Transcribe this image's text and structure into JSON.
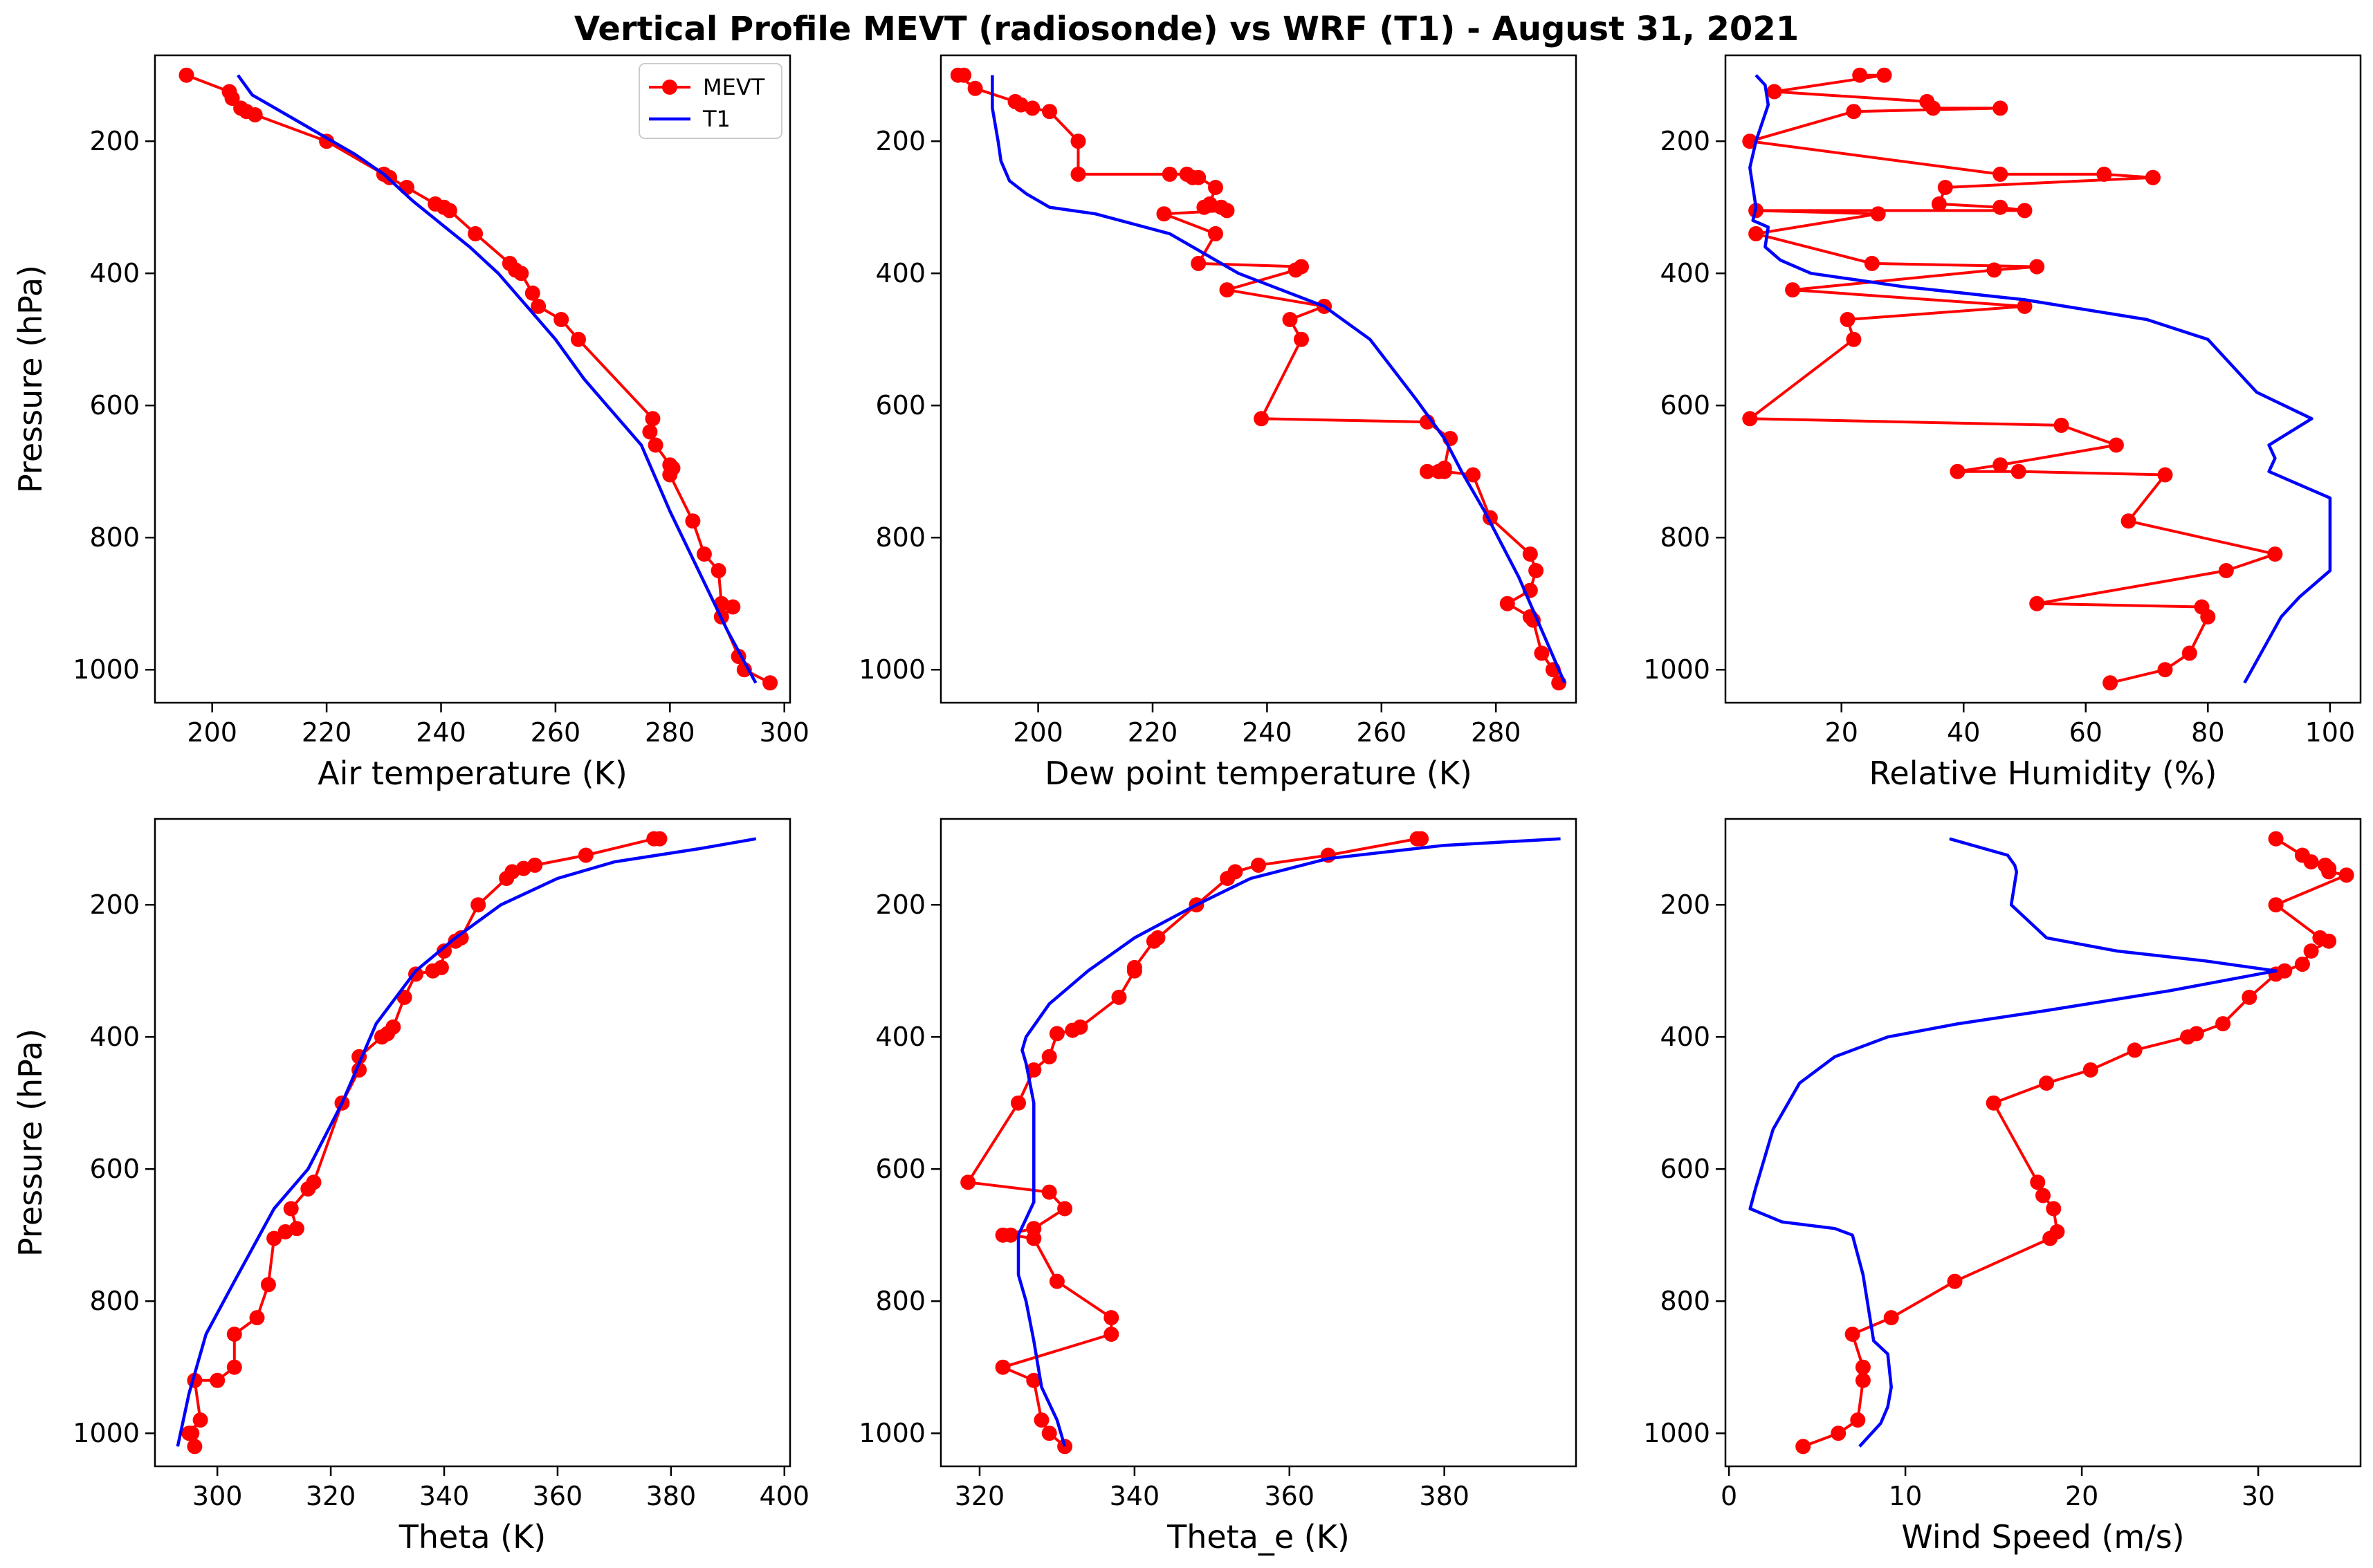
{
  "figure_title": "Vertical Profile MEVT (radiosonde) vs WRF (T1) - August 31, 2021",
  "legend": {
    "obs_label": "MEVT",
    "model_label": "T1"
  },
  "colors": {
    "obs": "#ff0000",
    "model": "#0000ff",
    "axes": "#000000",
    "background": "#ffffff"
  },
  "chart_data": [
    {
      "type": "line",
      "panel": "top-left",
      "xlabel": "Air temperature (K)",
      "ylabel": "Pressure (hPa)",
      "xlim": [
        190,
        301
      ],
      "ylim": [
        1050,
        70
      ],
      "xticks": [
        200,
        220,
        240,
        260,
        280,
        300
      ],
      "yticks": [
        200,
        400,
        600,
        800,
        1000
      ],
      "legend_position": "top-right",
      "series": [
        {
          "name": "MEVT",
          "marker": "circle",
          "x": [
            195.5,
            203,
            203.5,
            205,
            206,
            207.5,
            220,
            230,
            231,
            234,
            239,
            240.5,
            241.5,
            246,
            252,
            253,
            254,
            256,
            257,
            261,
            264,
            277,
            276.5,
            277.5,
            280,
            280.5,
            280,
            284,
            286,
            288.5,
            289,
            291,
            289,
            292,
            293,
            297.5
          ],
          "y": [
            100,
            125,
            135,
            150,
            155,
            160,
            200,
            250,
            255,
            270,
            295,
            300,
            305,
            340,
            385,
            395,
            400,
            430,
            450,
            470,
            500,
            620,
            640,
            660,
            690,
            695,
            705,
            775,
            825,
            850,
            900,
            905,
            920,
            980,
            1000,
            1020
          ]
        },
        {
          "name": "T1",
          "marker": "none",
          "x": [
            204.5,
            207,
            210,
            215,
            220,
            225,
            230,
            235,
            240,
            245,
            250,
            255,
            260,
            265,
            270,
            275,
            280,
            285,
            290,
            295
          ],
          "y": [
            100,
            130,
            145,
            170,
            195,
            220,
            250,
            290,
            325,
            360,
            400,
            450,
            500,
            560,
            610,
            660,
            760,
            850,
            940,
            1020
          ]
        }
      ]
    },
    {
      "type": "line",
      "panel": "top-middle",
      "xlabel": "Dew point temperature (K)",
      "ylabel": "",
      "xlim": [
        183,
        294
      ],
      "ylim": [
        1050,
        70
      ],
      "xticks": [
        200,
        220,
        240,
        260,
        280
      ],
      "yticks": [
        200,
        400,
        600,
        800,
        1000
      ],
      "series": [
        {
          "name": "MEVT",
          "marker": "circle",
          "x": [
            187,
            186,
            189,
            196,
            197,
            199,
            202,
            207,
            207,
            223,
            226,
            227,
            228,
            231,
            230,
            232,
            229,
            233,
            222,
            231,
            228,
            246,
            245,
            233,
            250,
            244,
            246,
            239,
            268,
            272,
            271,
            270,
            268,
            271,
            276,
            279,
            286,
            287,
            286,
            282,
            286,
            286.5,
            288,
            290,
            291
          ],
          "y": [
            100,
            100,
            120,
            140,
            145,
            150,
            155,
            200,
            250,
            250,
            250,
            255,
            255,
            270,
            295,
            300,
            300,
            305,
            310,
            340,
            385,
            390,
            395,
            425,
            450,
            470,
            500,
            620,
            625,
            650,
            695,
            700,
            700,
            700,
            705,
            770,
            825,
            850,
            880,
            900,
            920,
            925,
            975,
            1000,
            1020
          ]
        },
        {
          "name": "T1",
          "marker": "none",
          "x": [
            192,
            192,
            193,
            193.5,
            195,
            198,
            202,
            210,
            223,
            229,
            235,
            241,
            250,
            258,
            266,
            271,
            274,
            278,
            284,
            292
          ],
          "y": [
            100,
            150,
            200,
            230,
            260,
            280,
            300,
            310,
            340,
            370,
            400,
            420,
            450,
            500,
            590,
            650,
            700,
            760,
            860,
            1020
          ]
        }
      ]
    },
    {
      "type": "line",
      "panel": "top-right",
      "xlabel": "Relative Humidity (%)",
      "ylabel": "",
      "xlim": [
        1,
        105
      ],
      "ylim": [
        1050,
        70
      ],
      "xticks": [
        20,
        40,
        60,
        80,
        100
      ],
      "yticks": [
        200,
        400,
        600,
        800,
        1000
      ],
      "series": [
        {
          "name": "MEVT",
          "marker": "circle",
          "x": [
            23,
            27,
            9,
            34,
            35,
            46,
            22,
            5,
            46,
            63,
            71,
            71,
            37,
            36,
            46,
            50,
            6,
            26,
            6,
            25,
            52,
            45,
            12,
            50,
            21,
            22,
            5,
            56,
            65,
            46,
            39,
            49,
            73,
            67,
            91,
            83,
            52,
            79,
            80,
            77,
            73,
            64
          ],
          "y": [
            100,
            100,
            125,
            140,
            150,
            150,
            155,
            200,
            250,
            250,
            255,
            255,
            270,
            295,
            300,
            305,
            305,
            310,
            340,
            385,
            390,
            395,
            425,
            450,
            470,
            500,
            620,
            630,
            660,
            690,
            700,
            700,
            705,
            775,
            825,
            850,
            900,
            905,
            920,
            975,
            1000,
            1020
          ]
        },
        {
          "name": "T1",
          "marker": "none",
          "x": [
            6,
            7.5,
            8,
            6,
            5,
            6,
            5.5,
            8,
            7.5,
            10,
            15,
            30,
            50,
            70,
            80,
            88,
            97,
            90,
            91,
            90,
            100,
            100,
            95,
            92,
            86
          ],
          "y": [
            100,
            115,
            145,
            200,
            240,
            300,
            320,
            330,
            360,
            380,
            400,
            420,
            440,
            470,
            500,
            580,
            620,
            660,
            680,
            700,
            740,
            850,
            890,
            920,
            1020
          ]
        }
      ]
    },
    {
      "type": "line",
      "panel": "bottom-left",
      "xlabel": "Theta (K)",
      "ylabel": "Pressure (hPa)",
      "xlim": [
        289,
        401
      ],
      "ylim": [
        1050,
        70
      ],
      "xticks": [
        300,
        320,
        340,
        360,
        380,
        400
      ],
      "yticks": [
        200,
        400,
        600,
        800,
        1000
      ],
      "series": [
        {
          "name": "MEVT",
          "marker": "circle",
          "x": [
            378,
            377,
            365,
            356,
            354,
            352,
            351,
            346,
            343,
            342,
            340,
            339.5,
            338,
            335,
            333,
            331,
            330,
            329,
            325,
            325,
            322,
            317,
            316,
            313,
            314,
            312,
            310,
            309,
            307,
            303,
            303,
            300,
            296,
            297,
            295,
            295.5,
            296
          ],
          "y": [
            100,
            100,
            125,
            140,
            145,
            150,
            160,
            200,
            250,
            255,
            270,
            295,
            300,
            305,
            340,
            385,
            395,
            400,
            430,
            450,
            500,
            620,
            630,
            660,
            690,
            695,
            705,
            775,
            825,
            850,
            900,
            920,
            920,
            980,
            1000,
            1000,
            1020
          ]
        },
        {
          "name": "T1",
          "marker": "none",
          "x": [
            395,
            385,
            370,
            360,
            350,
            342,
            335,
            328,
            322,
            316,
            310,
            303,
            298,
            295,
            293
          ],
          "y": [
            100,
            115,
            135,
            160,
            200,
            250,
            300,
            380,
            500,
            600,
            660,
            770,
            850,
            940,
            1020
          ]
        }
      ]
    },
    {
      "type": "line",
      "panel": "bottom-middle",
      "xlabel": "Theta_e (K)",
      "ylabel": "",
      "xlim": [
        315,
        397
      ],
      "ylim": [
        1050,
        70
      ],
      "xticks": [
        320,
        340,
        360,
        380
      ],
      "yticks": [
        200,
        400,
        600,
        800,
        1000
      ],
      "series": [
        {
          "name": "MEVT",
          "marker": "circle",
          "x": [
            377,
            376.5,
            365,
            356,
            353,
            352,
            348,
            343,
            342.5,
            340,
            340,
            338,
            333,
            332,
            330,
            329,
            327,
            325,
            318.5,
            329,
            331,
            327,
            323,
            324,
            327,
            330,
            337,
            337,
            323,
            327,
            328,
            329,
            331
          ],
          "y": [
            100,
            100,
            125,
            140,
            150,
            160,
            200,
            250,
            255,
            295,
            300,
            340,
            385,
            390,
            395,
            430,
            450,
            500,
            620,
            635,
            660,
            690,
            700,
            700,
            705,
            770,
            825,
            850,
            900,
            920,
            980,
            1000,
            1020
          ]
        },
        {
          "name": "T1",
          "marker": "none",
          "x": [
            395,
            380,
            365,
            355,
            348,
            340,
            334,
            329,
            326,
            325.5,
            326,
            327,
            327,
            327,
            325,
            325,
            326,
            327,
            328,
            330,
            331
          ],
          "y": [
            100,
            110,
            130,
            160,
            200,
            250,
            300,
            350,
            400,
            420,
            440,
            500,
            600,
            650,
            700,
            760,
            800,
            860,
            930,
            980,
            1020
          ]
        }
      ]
    },
    {
      "type": "line",
      "panel": "bottom-right",
      "xlabel": "Wind Speed (m/s)",
      "ylabel": "",
      "xlim": [
        -0.2,
        35.8
      ],
      "ylim": [
        1050,
        70
      ],
      "xticks": [
        0,
        10,
        20,
        30
      ],
      "yticks": [
        200,
        400,
        600,
        800,
        1000
      ],
      "series": [
        {
          "name": "MEVT",
          "marker": "circle",
          "x": [
            31,
            32.5,
            33,
            33.8,
            34,
            34,
            35,
            31,
            33.5,
            34,
            33,
            32.5,
            31.5,
            31,
            29.5,
            28,
            26.5,
            26,
            23,
            20.5,
            18,
            15,
            17.5,
            17.8,
            18.4,
            18.6,
            18.2,
            12.8,
            9.2,
            7,
            7.6,
            7.6,
            7.3,
            6.2,
            4.2
          ],
          "y": [
            100,
            125,
            135,
            140,
            145,
            150,
            155,
            200,
            250,
            255,
            270,
            290,
            300,
            305,
            340,
            380,
            395,
            400,
            420,
            450,
            470,
            500,
            620,
            640,
            660,
            695,
            705,
            770,
            825,
            850,
            900,
            920,
            980,
            1000,
            1020
          ]
        },
        {
          "name": "T1",
          "marker": "none",
          "x": [
            12.5,
            15.8,
            16.2,
            16.3,
            16,
            18,
            22,
            27,
            31,
            25,
            18,
            13,
            9,
            6,
            4,
            2.5,
            1.5,
            1.2,
            3,
            6,
            7,
            7.2,
            7.6,
            8.2,
            9,
            9.2,
            9,
            8.6,
            7.4
          ],
          "y": [
            100,
            125,
            140,
            150,
            200,
            250,
            270,
            285,
            300,
            330,
            360,
            380,
            400,
            430,
            470,
            540,
            630,
            660,
            680,
            690,
            700,
            720,
            760,
            860,
            880,
            930,
            960,
            985,
            1020
          ]
        }
      ]
    }
  ]
}
